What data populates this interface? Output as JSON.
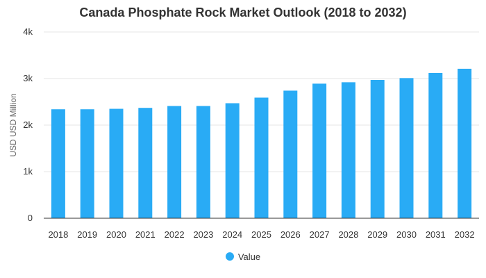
{
  "chart_data": {
    "type": "bar",
    "title": "Canada Phosphate Rock Market Outlook (2018 to 2032)",
    "xlabel": "",
    "ylabel": "USD USD Million",
    "categories": [
      "2018",
      "2019",
      "2020",
      "2021",
      "2022",
      "2023",
      "2024",
      "2025",
      "2026",
      "2027",
      "2028",
      "2029",
      "2030",
      "2031",
      "2032"
    ],
    "series": [
      {
        "name": "Value",
        "color": "#29abf5",
        "values": [
          2340,
          2340,
          2350,
          2370,
          2410,
          2410,
          2470,
          2590,
          2740,
          2890,
          2920,
          2970,
          3010,
          3120,
          3210
        ]
      }
    ],
    "ylim": [
      0,
      4000
    ],
    "yticks": [
      0,
      1000,
      2000,
      3000,
      4000
    ],
    "ytick_labels": [
      "0",
      "1k",
      "2k",
      "3k",
      "4k"
    ],
    "grid": true,
    "legend_position": "bottom"
  }
}
